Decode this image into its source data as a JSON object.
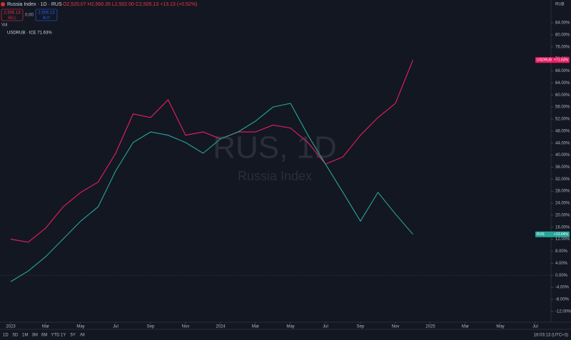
{
  "chart_data": {
    "type": "line",
    "title": "Russia Index · 1D · RUS",
    "ohlc": "O2,520.07 H2,560.35 L2,502.00 C2,505.13 +13.13 (+0.52%)",
    "sell": {
      "price": "2,505.13",
      "label": "SELL"
    },
    "spread": "0.00",
    "buy": {
      "price": "2,505.13",
      "label": "BUY"
    },
    "volume_label": "Vol",
    "compare_label": "USDRUB · ICE 71.63%",
    "watermark": [
      "RUS, 1D",
      "Russia Index"
    ],
    "currency": "RUB",
    "timeframes": [
      "1D",
      "5D",
      "1M",
      "3M",
      "6M",
      "YTD",
      "1Y",
      "5Y",
      "All"
    ],
    "clock": "16:03:13 (UTC+3)",
    "x": [
      "2023-01",
      "2023-02",
      "2023-03",
      "2023-04",
      "2023-05",
      "2023-06",
      "2023-07",
      "2023-08",
      "2023-09",
      "2023-10",
      "2023-11",
      "2023-12",
      "2024-01",
      "2024-02",
      "2024-03",
      "2024-04",
      "2024-05",
      "2024-06",
      "2024-07",
      "2024-08",
      "2024-09",
      "2024-10",
      "2024-11",
      "2024-12"
    ],
    "series": [
      {
        "name": "USDRUB",
        "color": "#e91e63",
        "tag_label": "+71.63%",
        "values": [
          12,
          11,
          15.7,
          22.8,
          27.6,
          31,
          40.6,
          53.7,
          52.5,
          58.4,
          46.6,
          47.7,
          45.4,
          47.7,
          47.7,
          50,
          49,
          44.2,
          37,
          39.4,
          46.6,
          52.5,
          57.2,
          71.63
        ]
      },
      {
        "name": "RUS",
        "color": "#26a69a",
        "tag_label": "+13.64%",
        "values": [
          -2.1,
          1.4,
          6.2,
          12.1,
          18,
          22.8,
          34.7,
          44.2,
          47.7,
          46.6,
          44.2,
          40.6,
          45.4,
          47.7,
          51.3,
          56,
          57.2,
          46.6,
          37,
          27.6,
          18,
          27.6,
          20.4,
          13.64
        ]
      }
    ],
    "xlim": [
      "2022-12",
      "2025-08"
    ],
    "xticks": [
      {
        "value": "2023-01",
        "label": "2023"
      },
      {
        "value": "2023-03",
        "label": "Mar"
      },
      {
        "value": "2023-05",
        "label": "May"
      },
      {
        "value": "2023-07",
        "label": "Jul"
      },
      {
        "value": "2023-09",
        "label": "Sep"
      },
      {
        "value": "2023-11",
        "label": "Nov"
      },
      {
        "value": "2024-01",
        "label": "2024"
      },
      {
        "value": "2024-03",
        "label": "Mar"
      },
      {
        "value": "2024-05",
        "label": "May"
      },
      {
        "value": "2024-07",
        "label": "Jul"
      },
      {
        "value": "2024-09",
        "label": "Sep"
      },
      {
        "value": "2024-11",
        "label": "Nov"
      },
      {
        "value": "2025-01",
        "label": "2025"
      },
      {
        "value": "2025-03",
        "label": "Mar"
      },
      {
        "value": "2025-05",
        "label": "May"
      },
      {
        "value": "2025-07",
        "label": "Jul"
      }
    ],
    "ylim": [
      -15.6,
      91.6
    ],
    "yticks": [
      {
        "value": -12,
        "label": "-12.00%"
      },
      {
        "value": -8,
        "label": "-8.00%"
      },
      {
        "value": -4,
        "label": "-4.00%"
      },
      {
        "value": 0,
        "label": "0.00%"
      },
      {
        "value": 4,
        "label": "4.00%"
      },
      {
        "value": 8,
        "label": "8.00%"
      },
      {
        "value": 12,
        "label": "12.00%"
      },
      {
        "value": 16,
        "label": "16.00%"
      },
      {
        "value": 20,
        "label": "20.00%"
      },
      {
        "value": 24,
        "label": "24.00%"
      },
      {
        "value": 28,
        "label": "28.00%"
      },
      {
        "value": 32,
        "label": "32.00%"
      },
      {
        "value": 36,
        "label": "36.00%"
      },
      {
        "value": 40,
        "label": "40.00%"
      },
      {
        "value": 44,
        "label": "44.00%"
      },
      {
        "value": 48,
        "label": "48.00%"
      },
      {
        "value": 52,
        "label": "52.00%"
      },
      {
        "value": 56,
        "label": "56.00%"
      },
      {
        "value": 60,
        "label": "60.00%"
      },
      {
        "value": 64,
        "label": "64.00%"
      },
      {
        "value": 68,
        "label": "68.00%"
      },
      {
        "value": 72,
        "label": "72.00%"
      },
      {
        "value": 76,
        "label": "76.00%"
      },
      {
        "value": 80,
        "label": "80.00%"
      },
      {
        "value": 84,
        "label": "84.00%"
      }
    ],
    "grid": false
  }
}
